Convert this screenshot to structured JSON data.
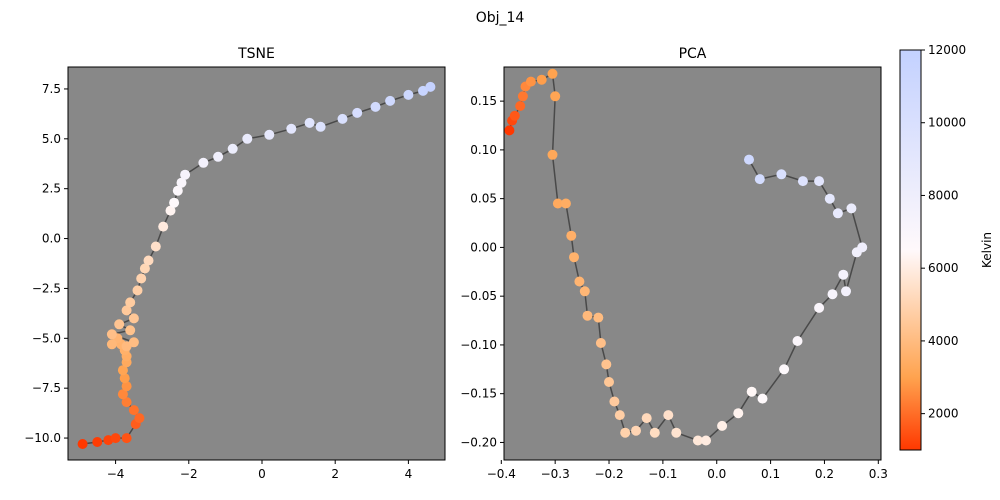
{
  "figure": {
    "suptitle": "Obj_14"
  },
  "colorbar": {
    "label": "Kelvin",
    "range": [
      1000,
      12000
    ],
    "ticks": [
      2000,
      4000,
      6000,
      8000,
      10000,
      12000
    ],
    "tick_labels": [
      "2000",
      "4000",
      "6000",
      "8000",
      "10000",
      "12000"
    ],
    "color_stops": [
      {
        "value": 1000,
        "color": "#ff3800"
      },
      {
        "value": 3000,
        "color": "#ffa34f"
      },
      {
        "value": 6500,
        "color": "#fff9fb"
      },
      {
        "value": 12000,
        "color": "#c3d1ff"
      }
    ]
  },
  "style": {
    "axes_facecolor": "#888888",
    "path_color": "#3a3a3a",
    "grid": false
  },
  "chart_data": [
    {
      "type": "scatter",
      "title": "TSNE",
      "xlim": [
        -5.3,
        5.0
      ],
      "ylim": [
        -11.1,
        8.6
      ],
      "xticks": [
        -4,
        -2,
        0,
        2,
        4
      ],
      "xtick_labels": [
        "−4",
        "−2",
        "0",
        "2",
        "4"
      ],
      "yticks": [
        -10.0,
        -7.5,
        -5.0,
        -2.5,
        0.0,
        2.5,
        5.0,
        7.5
      ],
      "ytick_labels": [
        "−10.0",
        "−7.5",
        "−5.0",
        "−2.5",
        "0.0",
        "2.5",
        "5.0",
        "7.5"
      ],
      "points": {
        "x": [
          -4.9,
          -4.5,
          -4.2,
          -4.0,
          -3.7,
          -3.45,
          -3.35,
          -3.5,
          -3.7,
          -3.8,
          -3.7,
          -3.75,
          -3.8,
          -3.7,
          -3.7,
          -3.75,
          -3.85,
          -3.95,
          -4.1,
          -3.7,
          -3.5,
          -4.1,
          -3.6,
          -3.9,
          -3.5,
          -3.7,
          -3.6,
          -3.4,
          -3.3,
          -3.2,
          -3.1,
          -2.9,
          -2.7,
          -2.5,
          -2.4,
          -2.3,
          -2.2,
          -2.1,
          -1.6,
          -1.2,
          -0.8,
          -0.4,
          0.2,
          0.8,
          1.3,
          1.6,
          2.2,
          2.6,
          3.1,
          3.5,
          4.0,
          4.4,
          4.6
        ],
        "y": [
          -10.3,
          -10.2,
          -10.1,
          -10.0,
          -10.0,
          -9.3,
          -9.0,
          -8.6,
          -8.2,
          -7.8,
          -7.4,
          -7.0,
          -6.6,
          -6.2,
          -5.9,
          -5.6,
          -5.3,
          -5.0,
          -5.3,
          -5.4,
          -5.2,
          -4.8,
          -4.6,
          -4.3,
          -4.0,
          -3.6,
          -3.2,
          -2.6,
          -2.0,
          -1.5,
          -1.1,
          -0.4,
          0.6,
          1.4,
          1.8,
          2.4,
          2.8,
          3.2,
          3.8,
          4.1,
          4.5,
          5.0,
          5.2,
          5.5,
          5.8,
          5.6,
          6.0,
          6.3,
          6.6,
          6.9,
          7.2,
          7.4,
          7.6
        ],
        "kelvin": [
          1000,
          1100,
          1200,
          1300,
          1500,
          1700,
          1900,
          2100,
          2300,
          2500,
          2700,
          2900,
          3100,
          3300,
          3450,
          3550,
          3650,
          3750,
          3850,
          3950,
          4050,
          4150,
          4250,
          4350,
          4450,
          4550,
          4650,
          4800,
          4950,
          5100,
          5250,
          5500,
          5900,
          6300,
          6550,
          6800,
          7050,
          7300,
          7600,
          7900,
          8200,
          8500,
          8800,
          9100,
          9400,
          9700,
          10000,
          10300,
          10600,
          10900,
          11200,
          11500,
          11800
        ]
      }
    },
    {
      "type": "scatter",
      "title": "PCA",
      "xlim": [
        -0.395,
        0.305
      ],
      "ylim": [
        -0.218,
        0.185
      ],
      "xticks": [
        -0.4,
        -0.3,
        -0.2,
        -0.1,
        0.0,
        0.1,
        0.2,
        0.3
      ],
      "xtick_labels": [
        "−0.4",
        "−0.3",
        "−0.2",
        "−0.1",
        "0.0",
        "0.1",
        "0.2",
        "0.3"
      ],
      "yticks": [
        -0.2,
        -0.15,
        -0.1,
        -0.05,
        0.0,
        0.05,
        0.1,
        0.15
      ],
      "ytick_labels": [
        "−0.20",
        "−0.15",
        "−0.10",
        "−0.05",
        "0.00",
        "0.05",
        "0.10",
        "0.15"
      ],
      "points": {
        "x": [
          -0.385,
          -0.38,
          -0.375,
          -0.365,
          -0.36,
          -0.355,
          -0.345,
          -0.325,
          -0.305,
          -0.3,
          -0.305,
          -0.295,
          -0.28,
          -0.27,
          -0.265,
          -0.255,
          -0.245,
          -0.24,
          -0.22,
          -0.215,
          -0.205,
          -0.2,
          -0.19,
          -0.18,
          -0.17,
          -0.15,
          -0.13,
          -0.115,
          -0.09,
          -0.075,
          -0.035,
          -0.02,
          0.01,
          0.04,
          0.065,
          0.085,
          0.125,
          0.15,
          0.19,
          0.215,
          0.235,
          0.24,
          0.26,
          0.27,
          0.25,
          0.225,
          0.21,
          0.19,
          0.16,
          0.12,
          0.08,
          0.06
        ],
        "y": [
          0.12,
          0.13,
          0.135,
          0.145,
          0.155,
          0.165,
          0.17,
          0.172,
          0.178,
          0.155,
          0.095,
          0.045,
          0.045,
          0.012,
          -0.01,
          -0.035,
          -0.045,
          -0.07,
          -0.072,
          -0.098,
          -0.12,
          -0.138,
          -0.158,
          -0.172,
          -0.19,
          -0.188,
          -0.175,
          -0.19,
          -0.172,
          -0.19,
          -0.198,
          -0.198,
          -0.183,
          -0.17,
          -0.148,
          -0.155,
          -0.125,
          -0.096,
          -0.062,
          -0.048,
          -0.028,
          -0.045,
          -0.005,
          0.0,
          0.04,
          0.035,
          0.05,
          0.068,
          0.068,
          0.075,
          0.07,
          0.09
        ],
        "kelvin": [
          1000,
          1300,
          1600,
          1900,
          2200,
          2500,
          2700,
          2900,
          3000,
          3100,
          3200,
          3300,
          3400,
          3500,
          3600,
          3700,
          3800,
          3900,
          4000,
          4150,
          4300,
          4450,
          4600,
          4750,
          4900,
          5050,
          5200,
          5350,
          5500,
          5650,
          5800,
          5950,
          6100,
          6250,
          6400,
          6550,
          6700,
          6850,
          7000,
          7200,
          7400,
          7600,
          7800,
          8000,
          8300,
          8600,
          8900,
          9200,
          9600,
          10000,
          10500,
          11000
        ]
      }
    }
  ]
}
